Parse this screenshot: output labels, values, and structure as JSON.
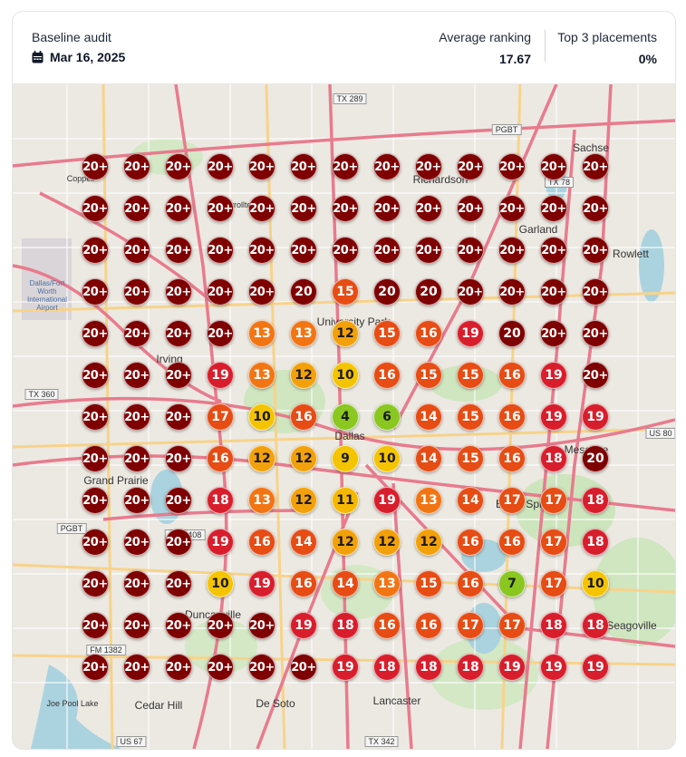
{
  "header": {
    "audit_label": "Baseline audit",
    "audit_date": "Mar 16, 2025",
    "avg_label": "Average ranking",
    "avg_value": "17.67",
    "top3_label": "Top 3 placements",
    "top3_value": "0%"
  },
  "map": {
    "places": [
      "Richardson",
      "Garland",
      "Irving",
      "Dallas",
      "Mesquite",
      "Grand Prairie",
      "Duncanville",
      "Cedar Hill",
      "De Soto",
      "Lancaster",
      "Seagoville",
      "Sachse",
      "Rowlett",
      "University Park",
      "Dallas/Fort Worth International Airport",
      "Balch Springs",
      "Joe Pool Lake",
      "Coppell",
      "Carrollton"
    ],
    "shields": [
      "TX 289",
      "PGBT",
      "TX 78",
      "TX 360",
      "PGBT",
      "Spur 408",
      "FM 1382",
      "TX 342",
      "US 67",
      "US 80"
    ],
    "ranks": [
      [
        "20+",
        "20+",
        "20+",
        "20+",
        "20+",
        "20+",
        "20+",
        "20+",
        "20+",
        "20+",
        "20+",
        "20+",
        "20+"
      ],
      [
        "20+",
        "20+",
        "20+",
        "20+",
        "20+",
        "20+",
        "20+",
        "20+",
        "20+",
        "20+",
        "20+",
        "20+",
        "20+"
      ],
      [
        "20+",
        "20+",
        "20+",
        "20+",
        "20+",
        "20+",
        "20+",
        "20+",
        "20+",
        "20+",
        "20+",
        "20+",
        "20+"
      ],
      [
        "20+",
        "20+",
        "20+",
        "20+",
        "20+",
        "20",
        "15",
        "20",
        "20",
        "20+",
        "20+",
        "20+",
        "20+"
      ],
      [
        "20+",
        "20+",
        "20+",
        "20+",
        "13",
        "13",
        "12",
        "15",
        "16",
        "19",
        "20",
        "20+",
        "20+"
      ],
      [
        "20+",
        "20+",
        "20+",
        "19",
        "13",
        "12",
        "10",
        "16",
        "15",
        "15",
        "16",
        "19",
        "20+"
      ],
      [
        "20+",
        "20+",
        "20+",
        "17",
        "10",
        "16",
        "4",
        "6",
        "14",
        "15",
        "16",
        "19",
        "19"
      ],
      [
        "20+",
        "20+",
        "20+",
        "16",
        "12",
        "12",
        "9",
        "10",
        "14",
        "15",
        "16",
        "18",
        "20"
      ],
      [
        "20+",
        "20+",
        "20+",
        "18",
        "13",
        "12",
        "11",
        "19",
        "13",
        "14",
        "17",
        "17",
        "18"
      ],
      [
        "20+",
        "20+",
        "20+",
        "19",
        "16",
        "14",
        "12",
        "12",
        "12",
        "16",
        "16",
        "17",
        "18"
      ],
      [
        "20+",
        "20+",
        "20+",
        "10",
        "19",
        "16",
        "14",
        "13",
        "15",
        "16",
        "7",
        "17",
        "10"
      ],
      [
        "20+",
        "20+",
        "20+",
        "20+",
        "20+",
        "19",
        "18",
        "16",
        "16",
        "17",
        "17",
        "18",
        "18"
      ],
      [
        "20+",
        "20+",
        "20+",
        "20+",
        "20+",
        "20+",
        "19",
        "18",
        "18",
        "18",
        "19",
        "19",
        "19"
      ]
    ],
    "rank_colors": {
      "20+": "#7f0000",
      "20": "#7f0000",
      "19": "#d81e2c",
      "18": "#d81e2c",
      "17": "#e64c14",
      "16": "#e64c14",
      "15": "#e64c14",
      "14": "#e64c14",
      "13": "#f27514",
      "12": "#f3a10a",
      "11": "#f5b800",
      "10": "#f5c400",
      "9": "#f5c400",
      "7": "#8ac721",
      "6": "#8ac721",
      "4": "#8ac721"
    }
  }
}
